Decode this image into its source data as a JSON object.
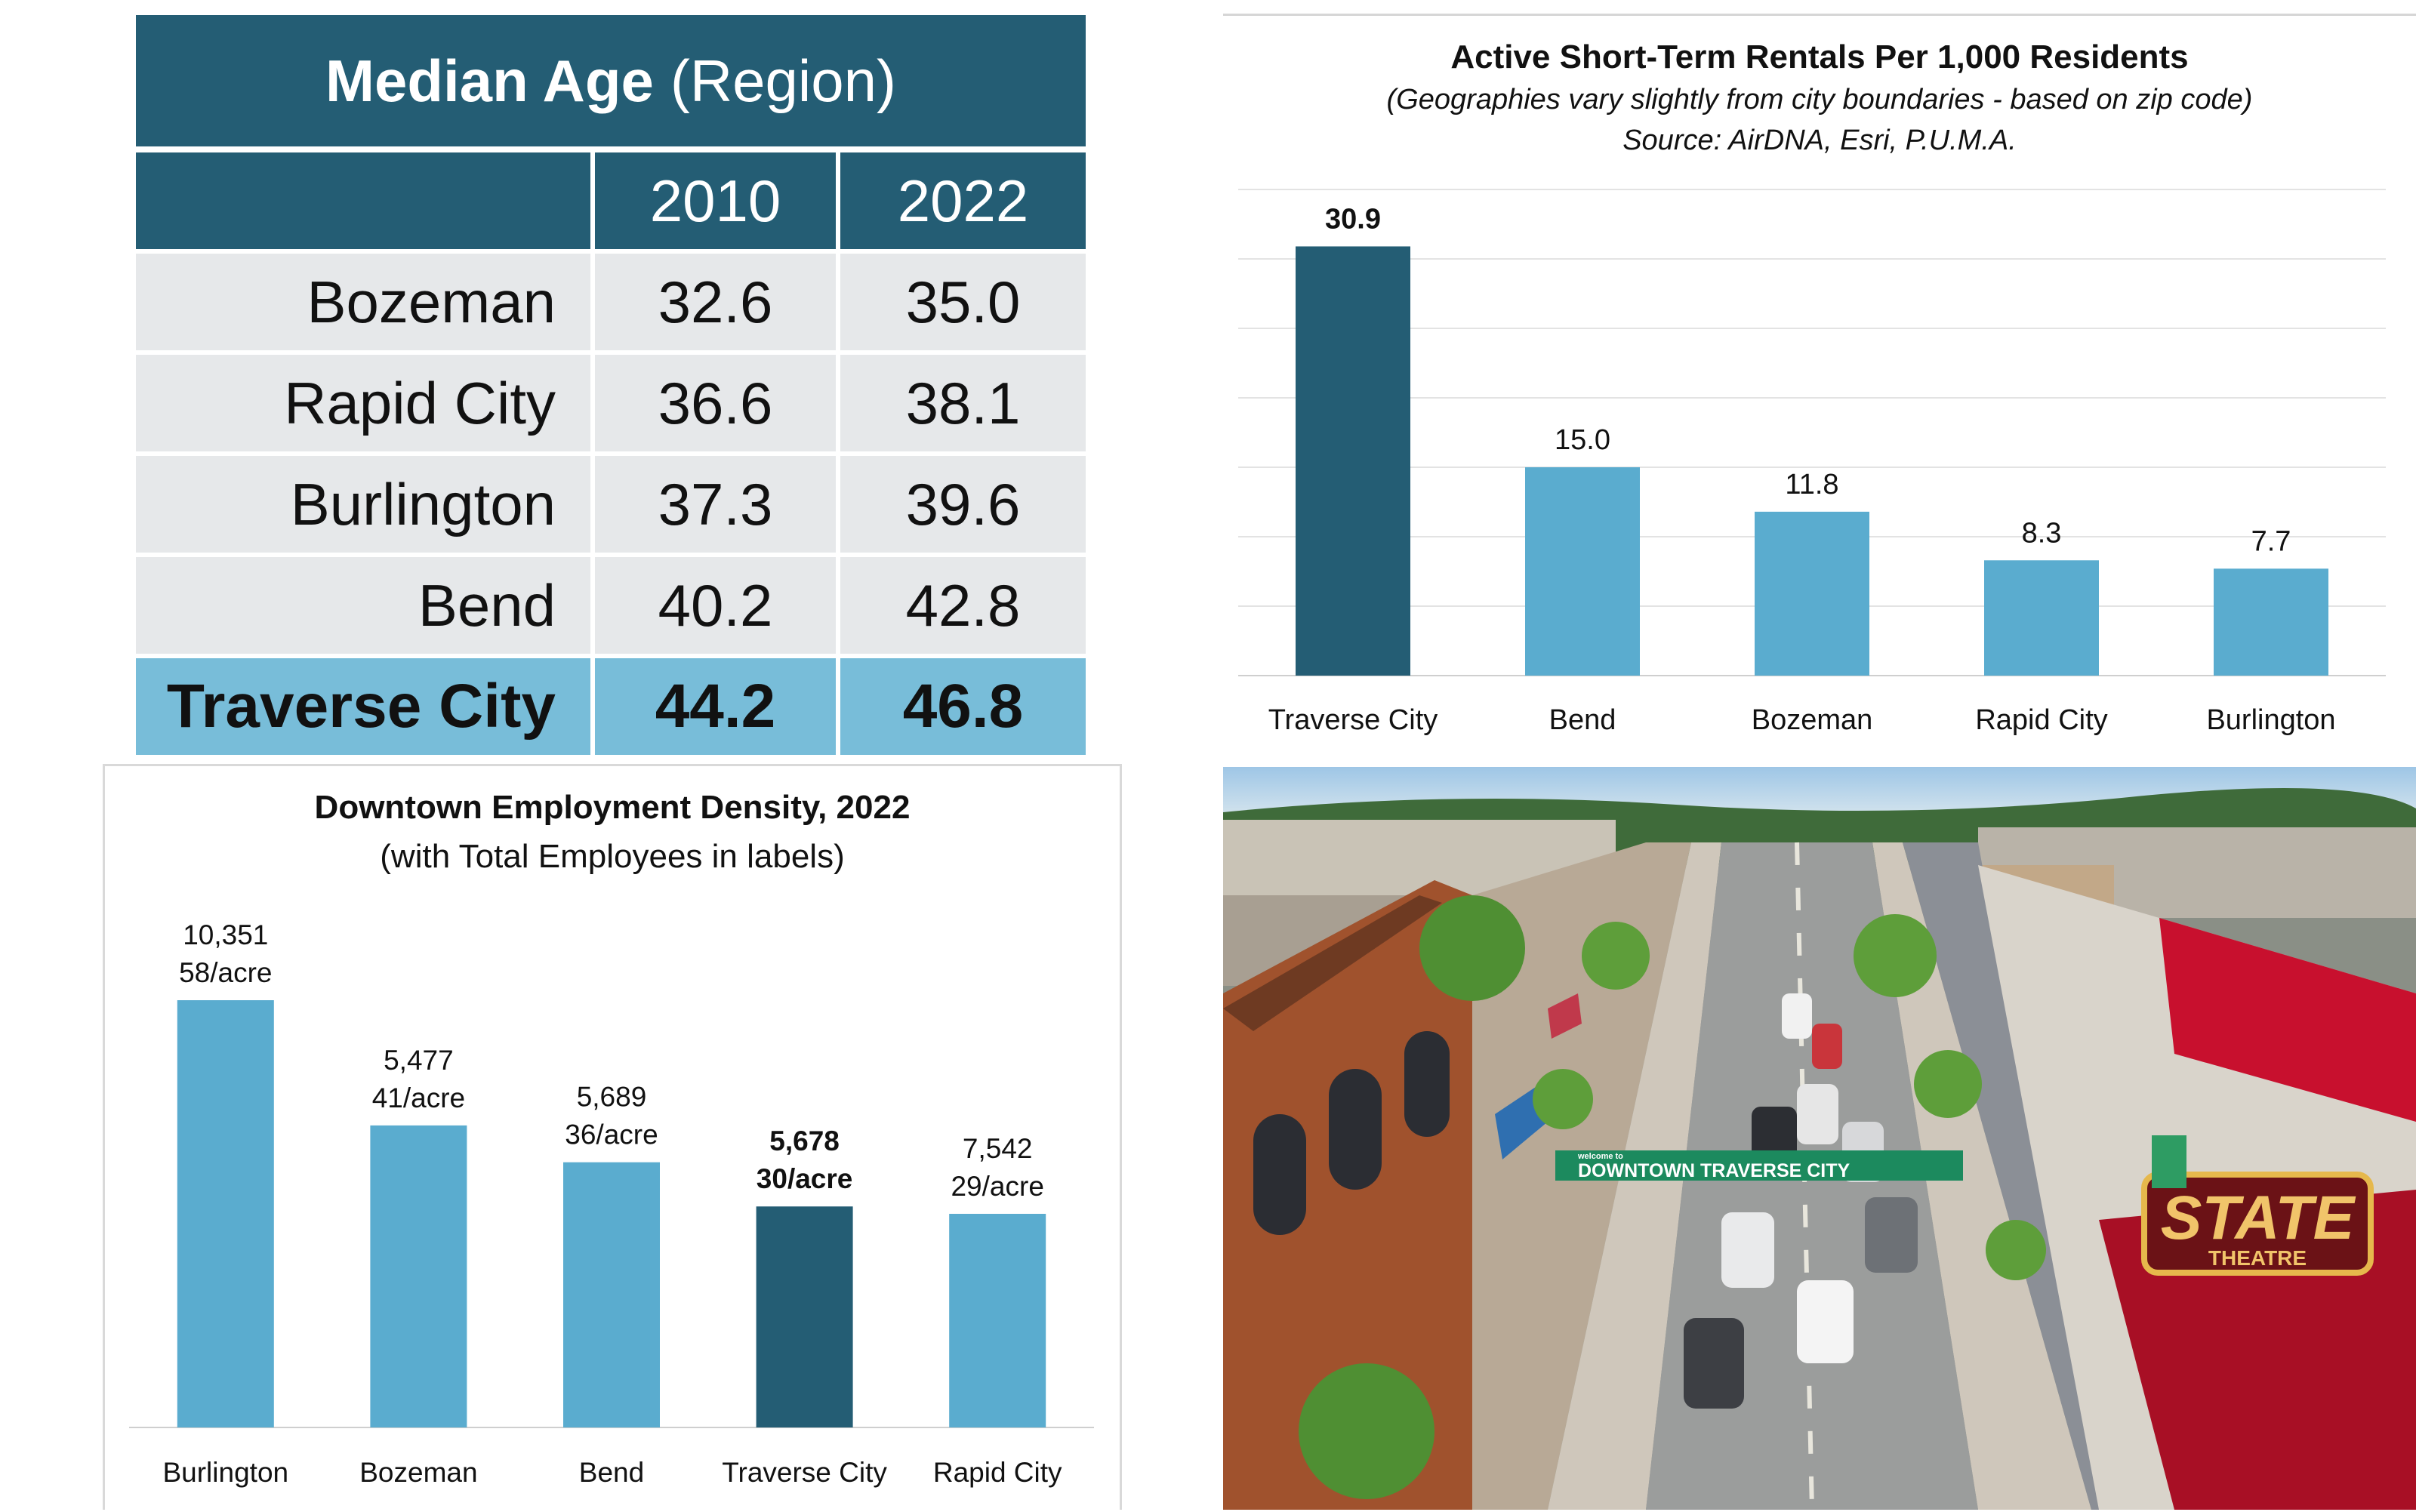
{
  "median_age": {
    "title_bold": "Median Age",
    "title_rest": "(Region)",
    "columns": [
      "",
      "2010",
      "2022"
    ],
    "rows": [
      {
        "city": "Bozeman",
        "y2010": "32.6",
        "y2022": "35.0"
      },
      {
        "city": "Rapid City",
        "y2010": "36.6",
        "y2022": "38.1"
      },
      {
        "city": "Burlington",
        "y2010": "37.3",
        "y2022": "39.6"
      },
      {
        "city": "Bend",
        "y2010": "40.2",
        "y2022": "42.8"
      },
      {
        "city": "Traverse City",
        "y2010": "44.2",
        "y2022": "46.8"
      }
    ]
  },
  "chart_data": [
    {
      "type": "bar",
      "title": "Active Short-Term Rentals Per 1,000 Residents",
      "subtitle": "(Geographies vary slightly from city boundaries - based on zip code)",
      "source": "Source: AirDNA, Esri, P.U.M.A.",
      "categories": [
        "Traverse City",
        "Bend",
        "Bozeman",
        "Rapid City",
        "Burlington"
      ],
      "values": [
        30.9,
        15.0,
        11.8,
        8.3,
        7.7
      ],
      "labels": [
        "30.9",
        "15.0",
        "11.8",
        "8.3",
        "7.7"
      ],
      "highlight_index": 0,
      "ylim": [
        0,
        35
      ],
      "grid": true
    },
    {
      "type": "bar",
      "title": "Downtown Employment Density, 2022",
      "subtitle": "(with Total Employees in labels)",
      "categories": [
        "Burlington",
        "Bozeman",
        "Bend",
        "Traverse City",
        "Rapid City"
      ],
      "values": [
        58,
        41,
        36,
        30,
        29
      ],
      "employees": [
        "10,351",
        "5,477",
        "5,689",
        "5,678",
        "7,542"
      ],
      "density_labels": [
        "58/acre",
        "41/acre",
        "36/acre",
        "30/acre",
        "29/acre"
      ],
      "highlight_index": 3,
      "ylim": [
        0,
        66
      ],
      "grid": false
    }
  ],
  "photo": {
    "banner_text": "DOWNTOWN TRAVERSE CITY",
    "banner_small": "welcome to",
    "marquee_text": "STATE",
    "marquee_sub": "THEATRE"
  },
  "colors": {
    "dark": "#245d74",
    "light": "#5aaccf",
    "table_header": "#245d74",
    "table_row": "#e6e8ea",
    "table_highlight": "#78bdd9"
  }
}
